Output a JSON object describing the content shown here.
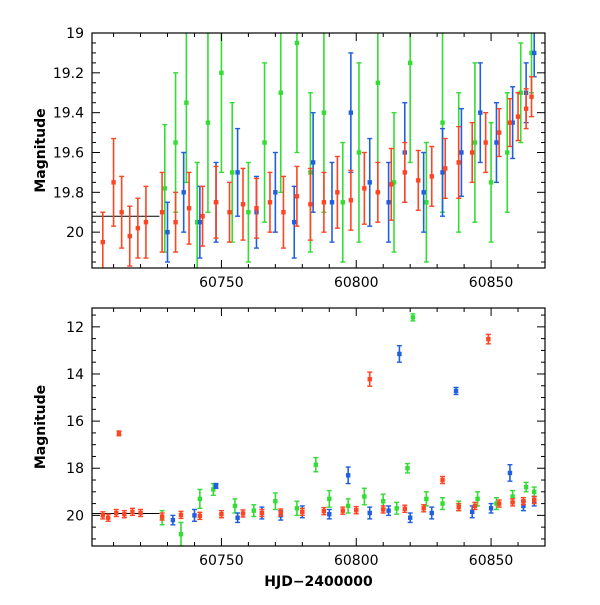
{
  "chart_data": [
    {
      "id": "top",
      "type": "scatter",
      "title": "",
      "xlabel": "",
      "ylabel": "Magnitude",
      "xlim": [
        60702,
        60870
      ],
      "ylim": [
        20.18,
        19.0
      ],
      "y_inverted": true,
      "grid": false,
      "legend": "none",
      "x_ticks": [
        60750,
        60800,
        60850
      ],
      "y_ticks": [
        19,
        19.2,
        19.4,
        19.6,
        19.8,
        20
      ],
      "y_tick_labels": [
        "19",
        "19.2",
        "19.4",
        "19.6",
        "19.8",
        "20"
      ],
      "series": [
        {
          "color": "#33dd33",
          "points": [
            [
              60729,
              19.78,
              0.32
            ],
            [
              60733,
              19.55,
              0.35
            ],
            [
              60737,
              19.35,
              0.4
            ],
            [
              60741,
              19.95,
              0.3
            ],
            [
              60745,
              19.45,
              0.45
            ],
            [
              60750,
              19.2,
              0.5
            ],
            [
              60754,
              19.7,
              0.35
            ],
            [
              60760,
              19.9,
              0.25
            ],
            [
              60766,
              19.55,
              0.4
            ],
            [
              60772,
              19.3,
              0.5
            ],
            [
              60778,
              19.05,
              0.55
            ],
            [
              60783,
              19.7,
              0.4
            ],
            [
              60788,
              19.4,
              0.5
            ],
            [
              60795,
              19.85,
              0.3
            ],
            [
              60801,
              19.6,
              0.45
            ],
            [
              60808,
              19.25,
              0.55
            ],
            [
              60814,
              19.75,
              0.35
            ],
            [
              60820,
              19.15,
              0.5
            ],
            [
              60826,
              19.85,
              0.3
            ],
            [
              60832,
              19.45,
              0.45
            ],
            [
              60838,
              19.65,
              0.35
            ],
            [
              60844,
              19.55,
              0.4
            ],
            [
              60850,
              19.75,
              0.3
            ],
            [
              60856,
              19.6,
              0.3
            ],
            [
              60861,
              19.3,
              0.25
            ],
            [
              60865,
              19.1,
              0.2
            ]
          ]
        },
        {
          "color": "#1f5fe0",
          "points": [
            [
              60730,
              20.0,
              0.15
            ],
            [
              60736,
              19.8,
              0.2
            ],
            [
              60742,
              19.95,
              0.18
            ],
            [
              60748,
              19.85,
              0.2
            ],
            [
              60756,
              19.7,
              0.22
            ],
            [
              60763,
              19.9,
              0.18
            ],
            [
              60770,
              19.8,
              0.2
            ],
            [
              60777,
              19.95,
              0.18
            ],
            [
              60784,
              19.65,
              0.25
            ],
            [
              60791,
              19.85,
              0.2
            ],
            [
              60798,
              19.4,
              0.3
            ],
            [
              60805,
              19.75,
              0.22
            ],
            [
              60812,
              19.85,
              0.2
            ],
            [
              60818,
              19.6,
              0.25
            ],
            [
              60825,
              19.8,
              0.2
            ],
            [
              60832,
              19.7,
              0.22
            ],
            [
              60839,
              19.6,
              0.22
            ],
            [
              60846,
              19.4,
              0.25
            ],
            [
              60852,
              19.55,
              0.2
            ],
            [
              60858,
              19.45,
              0.18
            ],
            [
              60863,
              19.3,
              0.15
            ],
            [
              60866,
              19.1,
              0.12
            ]
          ]
        },
        {
          "color": "#ff4422",
          "points": [
            [
              60706,
              20.05,
              0.15
            ],
            [
              60710,
              19.75,
              0.22
            ],
            [
              60713,
              19.9,
              0.18
            ],
            [
              60716,
              20.02,
              0.15
            ],
            [
              60719,
              19.98,
              0.15
            ],
            [
              60722,
              19.95,
              0.18
            ],
            [
              60728,
              19.9,
              0.2
            ],
            [
              60733,
              19.95,
              0.15
            ],
            [
              60738,
              19.88,
              0.18
            ],
            [
              60743,
              19.92,
              0.15
            ],
            [
              60748,
              19.85,
              0.18
            ],
            [
              60753,
              19.9,
              0.15
            ],
            [
              60758,
              19.86,
              0.18
            ],
            [
              60763,
              19.88,
              0.15
            ],
            [
              60768,
              19.85,
              0.15
            ],
            [
              60773,
              19.9,
              0.18
            ],
            [
              60778,
              19.82,
              0.15
            ],
            [
              60783,
              19.86,
              0.18
            ],
            [
              60788,
              19.85,
              0.15
            ],
            [
              60793,
              19.8,
              0.18
            ],
            [
              60798,
              19.84,
              0.15
            ],
            [
              60803,
              19.78,
              0.18
            ],
            [
              60808,
              19.8,
              0.15
            ],
            [
              60813,
              19.76,
              0.18
            ],
            [
              60818,
              19.7,
              0.15
            ],
            [
              60823,
              19.74,
              0.15
            ],
            [
              60828,
              19.72,
              0.15
            ],
            [
              60833,
              19.68,
              0.15
            ],
            [
              60838,
              19.65,
              0.18
            ],
            [
              60843,
              19.6,
              0.15
            ],
            [
              60848,
              19.55,
              0.15
            ],
            [
              60853,
              19.5,
              0.12
            ],
            [
              60857,
              19.45,
              0.12
            ],
            [
              60860,
              19.42,
              0.12
            ],
            [
              60863,
              19.38,
              0.1
            ],
            [
              60865,
              19.32,
              0.1
            ]
          ]
        }
      ]
    },
    {
      "id": "bottom",
      "type": "scatter",
      "title": "",
      "xlabel": "HJD−2400000",
      "ylabel": "Magnitude",
      "xlim": [
        60702,
        60870
      ],
      "ylim": [
        21.3,
        11.2
      ],
      "y_inverted": true,
      "grid": false,
      "legend": "none",
      "x_ticks": [
        60750,
        60800,
        60850
      ],
      "y_ticks": [
        12,
        14,
        16,
        18,
        20
      ],
      "y_tick_labels": [
        "12",
        "14",
        "16",
        "18",
        "20"
      ],
      "series": [
        {
          "color": "#33dd33",
          "points": [
            [
              60728,
              20.1,
              0.3
            ],
            [
              60735,
              20.8,
              0.5
            ],
            [
              60742,
              19.3,
              0.4
            ],
            [
              60747,
              18.9,
              0.25
            ],
            [
              60755,
              19.6,
              0.3
            ],
            [
              60762,
              19.8,
              0.25
            ],
            [
              60770,
              19.4,
              0.35
            ],
            [
              60778,
              19.7,
              0.3
            ],
            [
              60785,
              17.85,
              0.3
            ],
            [
              60790,
              19.3,
              0.35
            ],
            [
              60797,
              19.6,
              0.3
            ],
            [
              60803,
              19.2,
              0.35
            ],
            [
              60810,
              19.4,
              0.3
            ],
            [
              60815,
              19.7,
              0.25
            ],
            [
              60819,
              18.0,
              0.2
            ],
            [
              60821,
              11.6,
              0.15
            ],
            [
              60826,
              19.3,
              0.3
            ],
            [
              60832,
              19.5,
              0.25
            ],
            [
              60838,
              19.6,
              0.2
            ],
            [
              60845,
              19.3,
              0.3
            ],
            [
              60852,
              19.5,
              0.25
            ],
            [
              60858,
              19.2,
              0.25
            ],
            [
              60863,
              18.8,
              0.2
            ],
            [
              60866,
              19.0,
              0.2
            ]
          ]
        },
        {
          "color": "#1f5fe0",
          "points": [
            [
              60732,
              20.2,
              0.2
            ],
            [
              60740,
              20.0,
              0.25
            ],
            [
              60748,
              18.75,
              0.1
            ],
            [
              60756,
              20.1,
              0.2
            ],
            [
              60765,
              19.9,
              0.25
            ],
            [
              60772,
              20.0,
              0.2
            ],
            [
              60780,
              19.85,
              0.25
            ],
            [
              60790,
              19.95,
              0.2
            ],
            [
              60797,
              18.3,
              0.35
            ],
            [
              60805,
              19.9,
              0.25
            ],
            [
              60812,
              19.8,
              0.2
            ],
            [
              60816,
              13.15,
              0.35
            ],
            [
              60820,
              20.1,
              0.2
            ],
            [
              60828,
              19.9,
              0.25
            ],
            [
              60837,
              14.72,
              0.15
            ],
            [
              60843,
              19.85,
              0.25
            ],
            [
              60850,
              19.7,
              0.2
            ],
            [
              60857,
              18.2,
              0.35
            ],
            [
              60862,
              19.6,
              0.2
            ],
            [
              60866,
              19.4,
              0.2
            ]
          ]
        },
        {
          "color": "#ff4422",
          "points": [
            [
              60706,
              20.0,
              0.15
            ],
            [
              60708,
              20.1,
              0.15
            ],
            [
              60711,
              19.9,
              0.15
            ],
            [
              60712,
              16.52,
              0.1
            ],
            [
              60714,
              19.95,
              0.15
            ],
            [
              60717,
              19.85,
              0.15
            ],
            [
              60720,
              19.9,
              0.15
            ],
            [
              60728,
              20.05,
              0.15
            ],
            [
              60735,
              19.98,
              0.15
            ],
            [
              60742,
              20.02,
              0.15
            ],
            [
              60750,
              19.95,
              0.15
            ],
            [
              60758,
              19.92,
              0.15
            ],
            [
              60765,
              19.9,
              0.15
            ],
            [
              60772,
              19.88,
              0.15
            ],
            [
              60780,
              19.85,
              0.15
            ],
            [
              60788,
              19.82,
              0.15
            ],
            [
              60795,
              19.8,
              0.15
            ],
            [
              60800,
              19.78,
              0.15
            ],
            [
              60805,
              14.22,
              0.3
            ],
            [
              60810,
              19.75,
              0.15
            ],
            [
              60818,
              19.72,
              0.15
            ],
            [
              60825,
              19.7,
              0.15
            ],
            [
              60832,
              18.5,
              0.15
            ],
            [
              60838,
              19.65,
              0.15
            ],
            [
              60844,
              19.6,
              0.15
            ],
            [
              60849,
              12.52,
              0.2
            ],
            [
              60853,
              19.5,
              0.15
            ],
            [
              60858,
              19.45,
              0.15
            ],
            [
              60862,
              19.4,
              0.15
            ],
            [
              60866,
              19.35,
              0.15
            ]
          ]
        }
      ]
    }
  ]
}
